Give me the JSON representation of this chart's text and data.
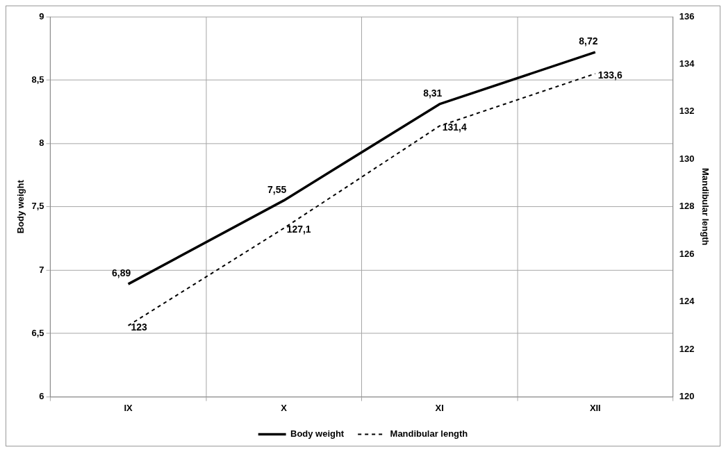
{
  "chart_data": {
    "type": "line",
    "categories": [
      "IX",
      "X",
      "XI",
      "XII"
    ],
    "series": [
      {
        "name": "Body weight",
        "color": "#000000",
        "values": [
          6.89,
          7.55,
          8.31,
          8.72
        ],
        "value_labels": [
          "6,89",
          "7,55",
          "8,31",
          "8,72"
        ],
        "line_style": "solid"
      },
      {
        "name": "Mandibular length",
        "color": "#000000",
        "axis": "y2",
        "values": [
          123,
          127.1,
          131.4,
          133.6
        ],
        "value_labels": [
          "123",
          "127,1",
          "131,4",
          "133,6"
        ],
        "line_style": "dashed"
      }
    ],
    "ylabel": "Body weight",
    "y2label": "Mandibular length",
    "ylim": [
      6,
      9
    ],
    "yticks": [
      6,
      {
        "value": 6.5,
        "label": "6,5"
      },
      7,
      {
        "value": 7.5,
        "label": "7,5"
      },
      8,
      {
        "value": 8.5,
        "label": "8,5"
      },
      9
    ],
    "y2lim": [
      120,
      136
    ],
    "y2ticks": [
      120,
      122,
      124,
      126,
      128,
      130,
      132,
      134,
      136
    ],
    "grid": true,
    "legend": "bottom",
    "marker": "none"
  }
}
